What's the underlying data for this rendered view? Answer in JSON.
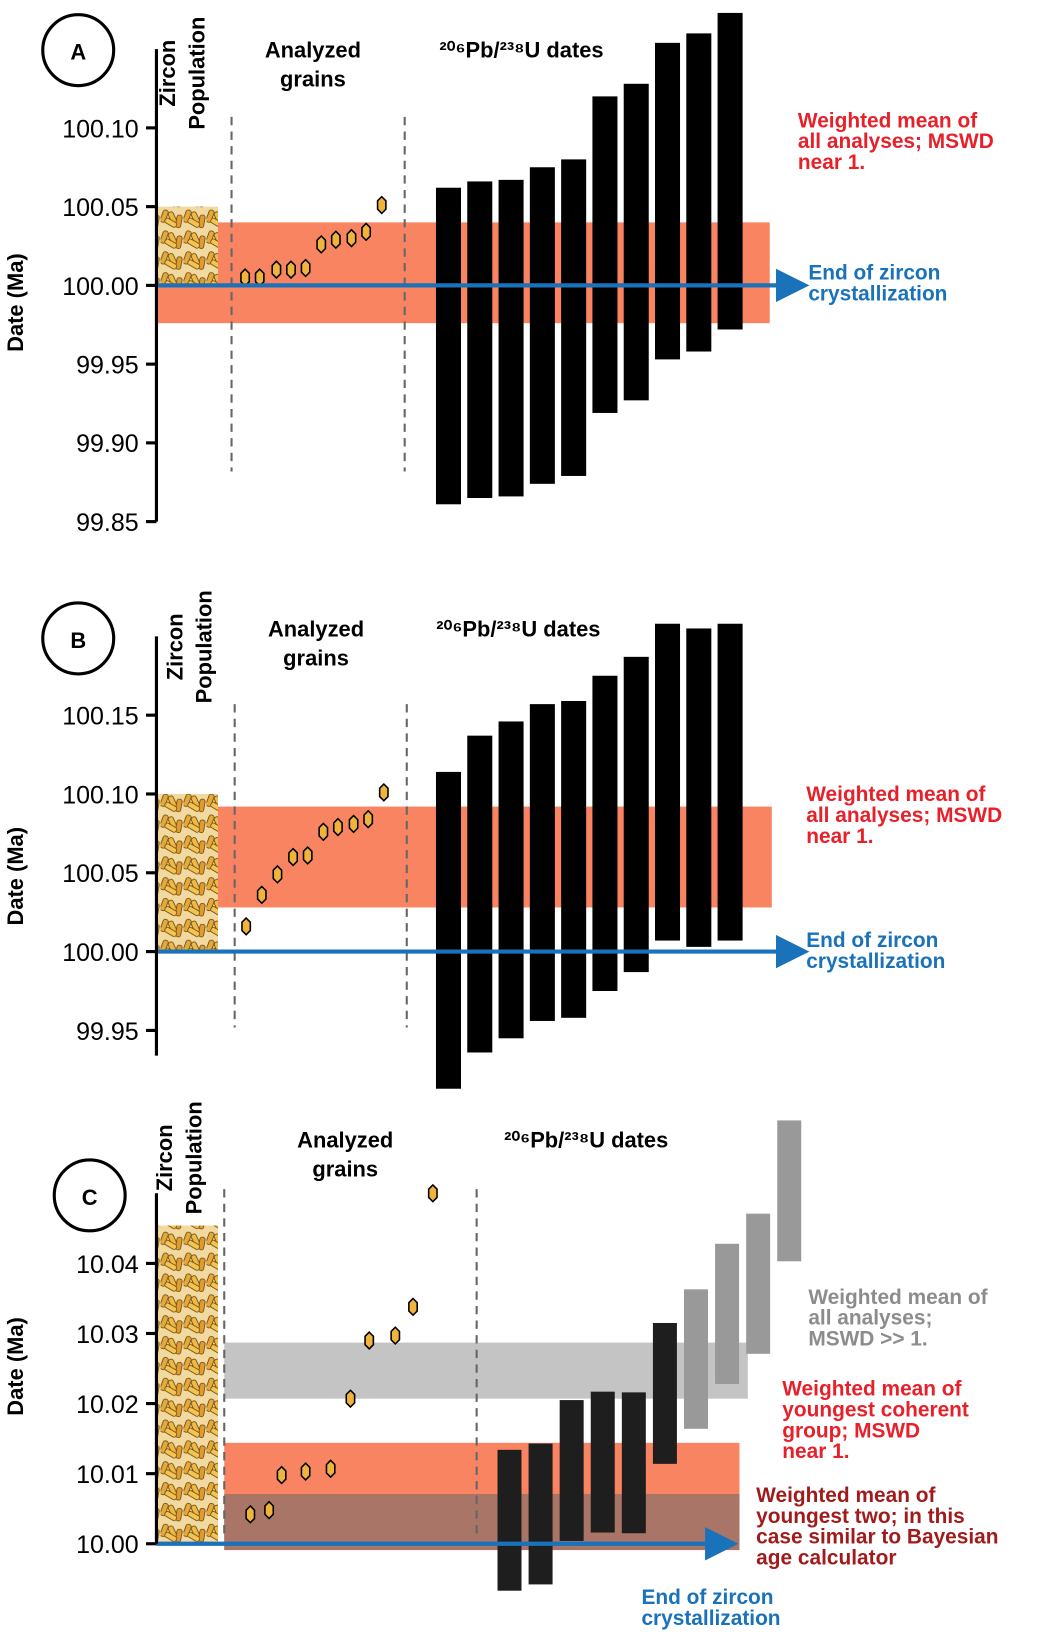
{
  "chart_data": [
    {
      "type": "range",
      "panel_label": "A",
      "ylabel": "Date (Ma)",
      "population_label": [
        "Zircon",
        "Population"
      ],
      "grains_label": [
        "Analyzed",
        "grains"
      ],
      "dates_label": "²⁰⁶Pb/²³⁸U dates",
      "ylim": [
        99.85,
        100.15
      ],
      "yticks": [
        99.85,
        {
          "value": 99.9,
          "label": "99.90"
        },
        99.95,
        {
          "value": 100,
          "label": "100.00"
        },
        100.05,
        {
          "value": 100.1,
          "label": "100.10"
        }
      ],
      "population_range": [
        100.0,
        100.05
      ],
      "grain_values": [
        100.005,
        100.005,
        100.01,
        100.01,
        100.011,
        100.026,
        100.029,
        100.03,
        100.034,
        100.051
      ],
      "bars": [
        {
          "color": "#000000",
          "lows": [
            99.861,
            99.865,
            99.866,
            99.874,
            99.879,
            99.919,
            99.927,
            99.953,
            99.958,
            99.972
          ],
          "highs": [
            100.062,
            100.066,
            100.067,
            100.075,
            100.08,
            100.12,
            100.128,
            100.154,
            100.16,
            100.173
          ]
        }
      ],
      "bands": [
        {
          "color": "#f98462",
          "range": [
            99.976,
            100.04
          ],
          "label": [
            "Weighted mean of",
            "all analyses; MSWD",
            "near 1."
          ],
          "label_color": "#e8202a"
        }
      ],
      "arrow_value": 100,
      "arrow_color": "#1a72bb",
      "arrow_label": [
        "End of zircon",
        "crystallization"
      ]
    },
    {
      "type": "range",
      "panel_label": "B",
      "ylabel": "Date (Ma)",
      "population_label": [
        "Zircon",
        "Population"
      ],
      "grains_label": [
        "Analyzed",
        "grains"
      ],
      "dates_label": "²⁰⁶Pb/²³⁸U dates",
      "ylim": [
        99.934,
        100.2
      ],
      "yticks": [
        99.95,
        {
          "value": 100,
          "label": "100.00"
        },
        100.05,
        {
          "value": 100.1,
          "label": "100.10"
        },
        100.15
      ],
      "population_range": [
        100.0,
        100.1
      ],
      "grain_values": [
        100.016,
        100.036,
        100.049,
        100.06,
        100.061,
        100.076,
        100.079,
        100.081,
        100.084,
        100.101
      ],
      "bars": [
        {
          "color": "#000000",
          "lows": [
            99.913,
            99.936,
            99.945,
            99.956,
            99.958,
            99.975,
            99.987,
            100.007,
            100.003,
            100.007
          ],
          "highs": [
            100.114,
            100.137,
            100.146,
            100.157,
            100.159,
            100.175,
            100.187,
            100.208,
            100.205,
            100.208
          ]
        }
      ],
      "bands": [
        {
          "color": "#f98462",
          "range": [
            100.028,
            100.092
          ],
          "label": [
            "Weighted mean of",
            "all analyses; MSWD",
            "near 1."
          ],
          "label_color": "#e8202a"
        }
      ],
      "arrow_value": 100,
      "arrow_color": "#1a72bb",
      "arrow_label": [
        "End of zircon",
        "crystallization"
      ]
    },
    {
      "type": "range",
      "panel_label": "C",
      "ylabel": "Date (Ma)",
      "population_label": [
        "Zircon",
        "Population"
      ],
      "grains_label": [
        "Analyzed",
        "grains"
      ],
      "dates_label": "²⁰⁶Pb/²³⁸U dates",
      "ylim": [
        10.0,
        10.05
      ],
      "yticks": [
        {
          "value": 10,
          "label": "10.00"
        },
        10.01,
        10.02,
        10.03,
        10.04
      ],
      "population_range": [
        10.0,
        10.0454
      ],
      "grain_values": [
        10.0042,
        10.0048,
        10.0098,
        10.0103,
        10.0107,
        10.0207,
        10.029,
        10.0297,
        10.0338,
        10.05
      ],
      "bars": [
        {
          "color": "#1e1e1e",
          "lows": [
            9.9933,
            9.9942,
            10.0004,
            10.0016,
            10.0015,
            10.0114
          ],
          "highs": [
            10.0134,
            10.0143,
            10.0205,
            10.0217,
            10.0216,
            10.0315
          ]
        },
        {
          "color": "#999999",
          "lows": [
            10.0164,
            10.0228,
            10.0271,
            10.0403
          ],
          "highs": [
            10.0363,
            10.0428,
            10.0471,
            10.0604
          ]
        }
      ],
      "bands": [
        {
          "color": "#c4c4c4",
          "range": [
            10.0207,
            10.0287
          ],
          "label": [
            "Weighted mean of",
            "all analyses;",
            "MSWD >> 1."
          ],
          "label_color": "#8c8c8c"
        },
        {
          "color": "#f98462",
          "range": [
            9.9991,
            10.0144
          ],
          "label": [
            "Weighted mean of",
            "youngest coherent",
            "group; MSWD",
            "near 1."
          ],
          "label_color": "#e8202a"
        },
        {
          "color": "#a87566",
          "range": [
            9.9991,
            10.0071
          ],
          "label": [
            "Weighted mean of",
            "youngest two; in this",
            "case similar to Bayesian",
            "age calculator"
          ],
          "label_color": "#a01c1c"
        }
      ],
      "arrow_value": 10,
      "arrow_color": "#1a72bb",
      "arrow_label": [
        "End of zircon",
        "crystallization"
      ]
    }
  ]
}
